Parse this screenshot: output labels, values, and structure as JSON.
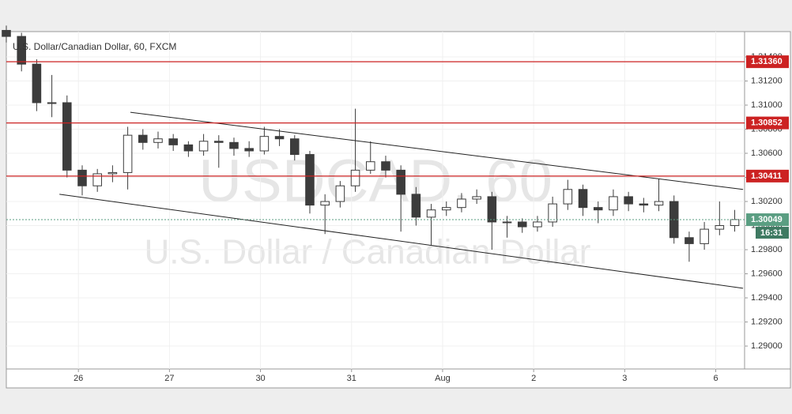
{
  "chart_data": {
    "type": "candlestick",
    "title": "U.S. Dollar/Canadian Dollar, 60, FXCM",
    "watermark": [
      "USDCAD, 60",
      "U.S. Dollar / Canadian Dollar"
    ],
    "x": [
      0,
      4,
      8,
      12,
      16,
      20,
      24,
      28,
      32,
      36,
      40,
      44,
      48,
      52,
      56,
      60,
      64,
      68,
      72,
      76,
      80,
      84,
      88,
      92,
      96,
      100,
      104,
      108,
      112,
      116,
      120,
      124,
      128,
      132,
      136,
      140,
      144,
      148,
      152,
      156,
      160,
      164,
      168,
      172,
      176,
      180,
      184,
      188,
      192
    ],
    "open": [
      1.3162,
      1.3157,
      1.3134,
      1.3102,
      1.3102,
      1.3046,
      1.3033,
      1.3043,
      1.3044,
      1.3075,
      1.3069,
      1.3072,
      1.3067,
      1.3062,
      1.307,
      1.3069,
      1.3064,
      1.3062,
      1.3074,
      1.3072,
      1.3059,
      1.3017,
      1.302,
      1.3033,
      1.3046,
      1.3053,
      1.3046,
      1.3026,
      1.3007,
      1.3013,
      1.3015,
      1.3022,
      1.3024,
      1.3003,
      1.3003,
      1.2999,
      1.3003,
      1.3018,
      1.303,
      1.3015,
      1.3013,
      1.3024,
      1.3018,
      1.3017,
      1.302,
      1.299,
      1.2985,
      1.2997,
      1.3
    ],
    "high": [
      1.3166,
      1.316,
      1.3138,
      1.3125,
      1.3108,
      1.305,
      1.3047,
      1.305,
      1.3082,
      1.308,
      1.3078,
      1.3076,
      1.307,
      1.3076,
      1.3075,
      1.3073,
      1.307,
      1.3082,
      1.308,
      1.3075,
      1.3062,
      1.3026,
      1.3037,
      1.3097,
      1.307,
      1.3058,
      1.305,
      1.3032,
      1.3018,
      1.302,
      1.3027,
      1.303,
      1.3028,
      1.3008,
      1.3006,
      1.3008,
      1.3024,
      1.3038,
      1.3034,
      1.302,
      1.303,
      1.3028,
      1.3023,
      1.3039,
      1.3025,
      1.2995,
      1.3003,
      1.302,
      1.3013
    ],
    "low": [
      1.3152,
      1.3128,
      1.3095,
      1.309,
      1.304,
      1.3025,
      1.3028,
      1.3036,
      1.303,
      1.3063,
      1.3064,
      1.3062,
      1.3057,
      1.3058,
      1.3048,
      1.3058,
      1.3057,
      1.3059,
      1.3066,
      1.3054,
      1.301,
      1.2993,
      1.3015,
      1.3028,
      1.3043,
      1.304,
      1.2995,
      1.3,
      1.2984,
      1.3008,
      1.3011,
      1.3018,
      1.298,
      1.299,
      1.2994,
      1.2995,
      1.2999,
      1.3013,
      1.3008,
      1.3002,
      1.3008,
      1.3012,
      1.3011,
      1.3012,
      1.2985,
      1.297,
      1.298,
      1.2992,
      1.2995
    ],
    "close": [
      1.3157,
      1.3134,
      1.3102,
      1.3102,
      1.3046,
      1.3033,
      1.3043,
      1.3044,
      1.3075,
      1.3069,
      1.3072,
      1.3067,
      1.3062,
      1.307,
      1.3069,
      1.3064,
      1.3062,
      1.3074,
      1.3072,
      1.3059,
      1.3017,
      1.302,
      1.3033,
      1.3046,
      1.3053,
      1.3046,
      1.3026,
      1.3007,
      1.3013,
      1.3015,
      1.3022,
      1.3024,
      1.3003,
      1.3003,
      1.2999,
      1.3003,
      1.3018,
      1.303,
      1.3015,
      1.3013,
      1.3024,
      1.3018,
      1.3017,
      1.302,
      1.299,
      1.2985,
      1.2997,
      1.3,
      1.3005
    ],
    "up_color": "#ffffff",
    "down_color": "#3c3c3c",
    "wick_color": "#3c3c3c",
    "xlim": [
      0,
      194.6
    ],
    "xticks": [
      {
        "value": 19,
        "label": "26"
      },
      {
        "value": 43,
        "label": "27"
      },
      {
        "value": 67,
        "label": "30"
      },
      {
        "value": 91,
        "label": "31"
      },
      {
        "value": 115,
        "label": "Aug"
      },
      {
        "value": 139,
        "label": "2"
      },
      {
        "value": 163,
        "label": "3"
      },
      {
        "value": 187,
        "label": "6"
      }
    ],
    "ylim": [
      1.2881,
      1.3161
    ],
    "yticks": [
      {
        "value": 1.29,
        "label": "1.29000"
      },
      {
        "value": 1.292,
        "label": "1.29200"
      },
      {
        "value": 1.294,
        "label": "1.29400"
      },
      {
        "value": 1.296,
        "label": "1.29600"
      },
      {
        "value": 1.298,
        "label": "1.29800"
      },
      {
        "value": 1.3,
        "label": "1.30000"
      },
      {
        "value": 1.302,
        "label": "1.30200"
      },
      {
        "value": 1.304,
        "label": "1.30400"
      },
      {
        "value": 1.306,
        "label": "1.30600"
      },
      {
        "value": 1.308,
        "label": "1.30800"
      },
      {
        "value": 1.31,
        "label": "1.31000"
      },
      {
        "value": 1.312,
        "label": "1.31200"
      },
      {
        "value": 1.314,
        "label": "1.31400"
      }
    ],
    "levels": [
      {
        "value": 1.3136,
        "label": "1.31360",
        "color": "#cc2222"
      },
      {
        "value": 1.30852,
        "label": "1.30852",
        "color": "#cc2222"
      },
      {
        "value": 1.30411,
        "label": "1.30411",
        "color": "#cc2222"
      }
    ],
    "last": {
      "value": 1.30049,
      "label": "1.30049",
      "time": "16:31",
      "color": "#5a9e82",
      "time_color": "#3f7a62"
    },
    "trendlines": [
      {
        "x": [
          32.7,
          194.2
        ],
        "y": [
          1.3094,
          1.303
        ]
      },
      {
        "x": [
          14.0,
          194.2
        ],
        "y": [
          1.3026,
          1.2948
        ]
      }
    ]
  }
}
